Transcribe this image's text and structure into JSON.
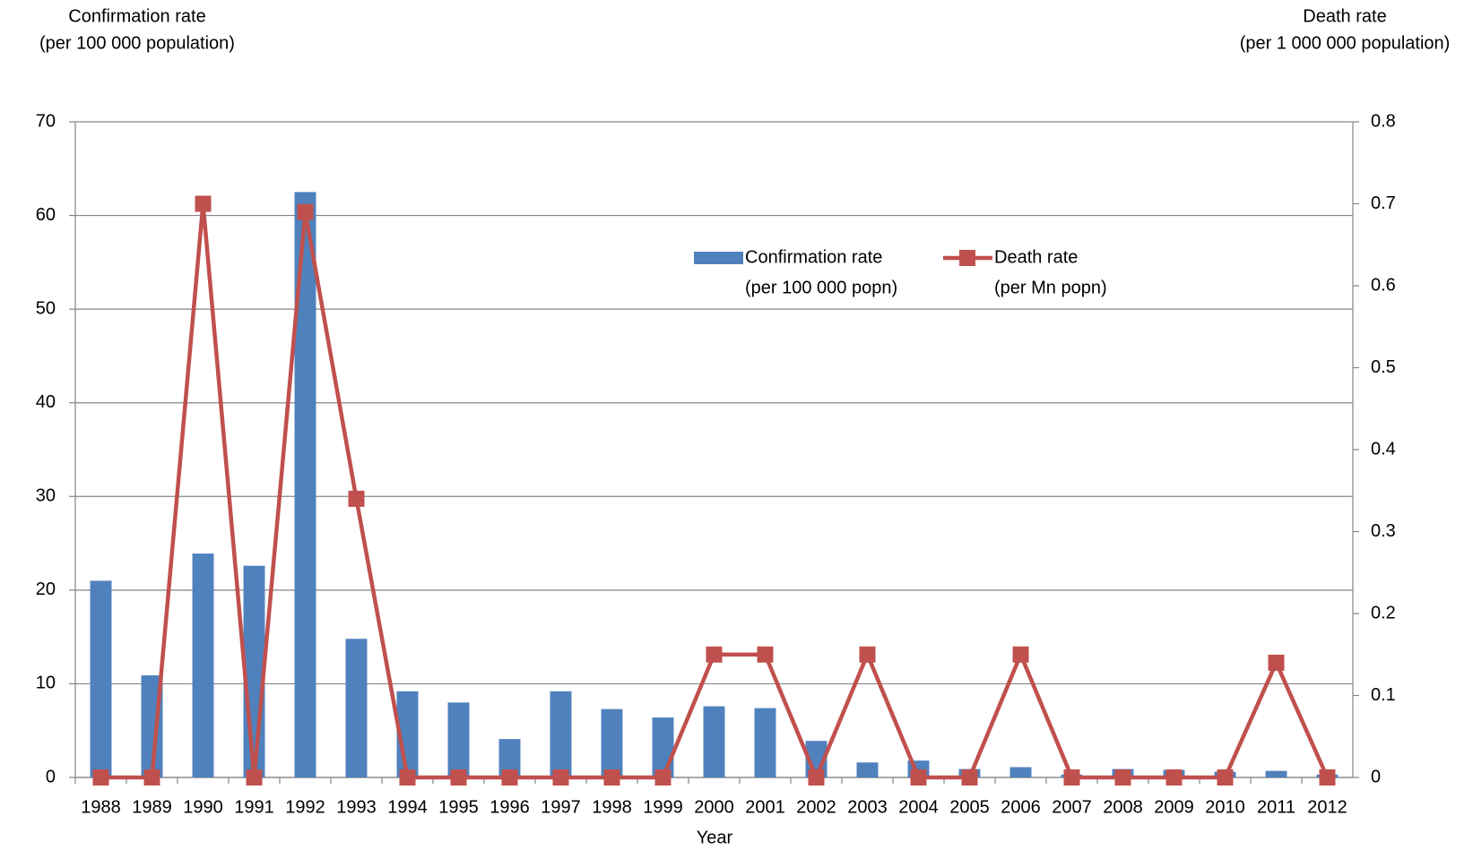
{
  "chart_data": {
    "type": "bar_line",
    "y_axis_title": [
      "Confirmation rate",
      "(per 100 000 population)"
    ],
    "y2_axis_title": [
      "Death rate",
      "(per 1 000 000 population)"
    ],
    "x_axis_title": "Year",
    "categories": [
      "1988",
      "1989",
      "1990",
      "1991",
      "1992",
      "1993",
      "1994",
      "1995",
      "1996",
      "1997",
      "1998",
      "1999",
      "2000",
      "2001",
      "2002",
      "2003",
      "2004",
      "2005",
      "2006",
      "2007",
      "2008",
      "2009",
      "2010",
      "2011",
      "2012"
    ],
    "series": [
      {
        "name": [
          "Confirmation rate",
          "(per 100 000 popn)"
        ],
        "type": "bar",
        "color": "#4f81bd",
        "values": [
          21.0,
          10.9,
          23.9,
          22.6,
          62.5,
          14.8,
          9.2,
          8.0,
          4.1,
          9.2,
          7.3,
          6.4,
          7.6,
          7.4,
          3.9,
          1.6,
          1.8,
          0.9,
          1.1,
          0.3,
          0.9,
          0.8,
          0.6,
          0.7,
          0.3
        ]
      },
      {
        "name": [
          "Death rate",
          "(per Mn popn)"
        ],
        "type": "line",
        "axis": "y2",
        "color": "#c0504d",
        "values": [
          0,
          0,
          0.7,
          0,
          0.69,
          0.34,
          0,
          0,
          0,
          0,
          0,
          0,
          0.15,
          0.15,
          0,
          0.15,
          0,
          0,
          0.15,
          0,
          0,
          0,
          0,
          0.14,
          0
        ]
      }
    ],
    "ylim": [
      0,
      70
    ],
    "yticks": [
      0,
      10,
      20,
      30,
      40,
      50,
      60,
      70
    ],
    "y2lim": [
      0,
      0.8
    ],
    "y2ticks": [
      0,
      0.1,
      0.2,
      0.3,
      0.4,
      0.5,
      0.6,
      0.7,
      0.8
    ],
    "grid": true,
    "legend": "upper center"
  }
}
